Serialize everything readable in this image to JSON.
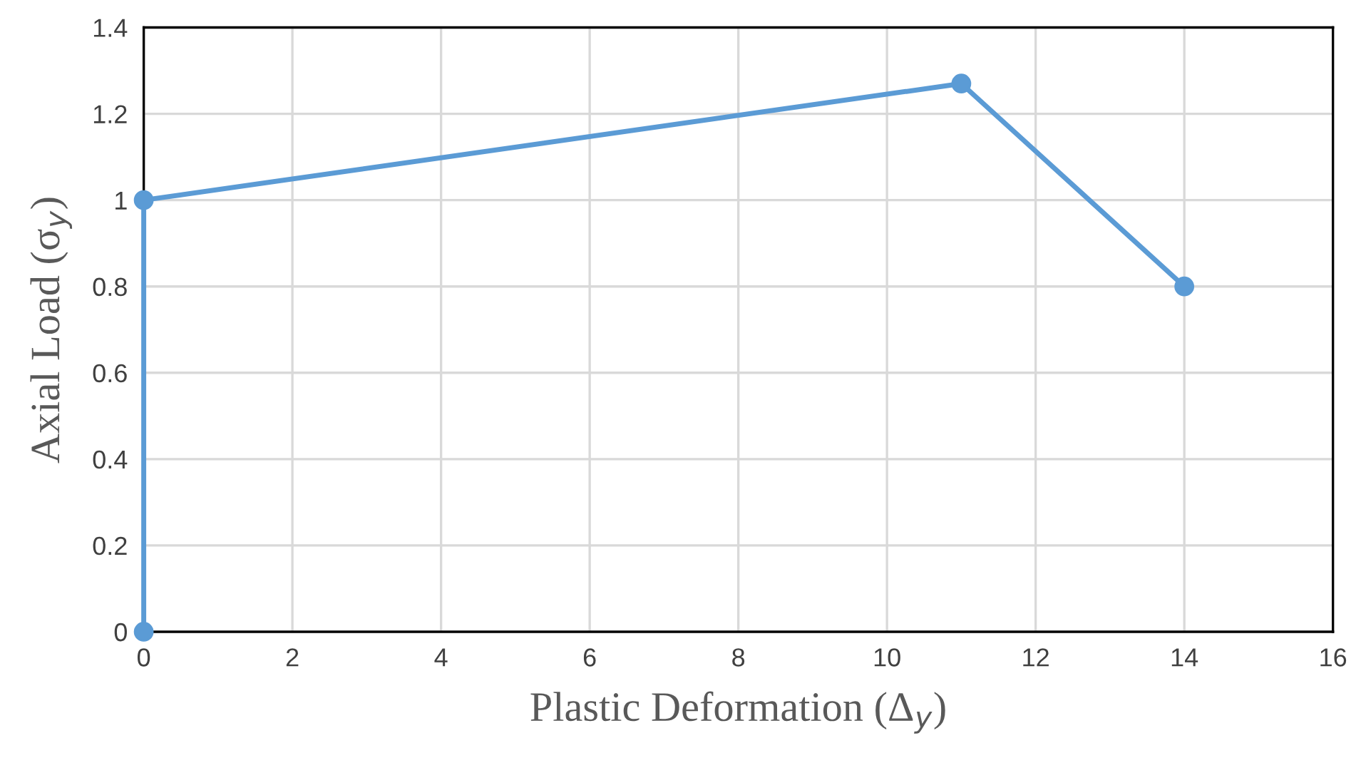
{
  "chart_data": {
    "type": "line",
    "xlabel": "Plastic Deformation (Δ$_{y}$)",
    "ylabel": "Axial Load (σ$_{y}$)",
    "series": [
      {
        "color": "#5b9bd5",
        "x": [
          0,
          0,
          11,
          14
        ],
        "values": [
          0,
          1,
          1.27,
          0.8
        ]
      }
    ],
    "xlim": [
      0,
      16
    ],
    "xticks": [
      0,
      2,
      4,
      6,
      8,
      10,
      12,
      14,
      16
    ],
    "ylim": [
      0,
      1.4
    ],
    "yticks": [
      0,
      0.2,
      0.4,
      0.6,
      0.8,
      1,
      1.2,
      1.4
    ],
    "grid": true,
    "marker": "circle",
    "line_style": "solid"
  }
}
